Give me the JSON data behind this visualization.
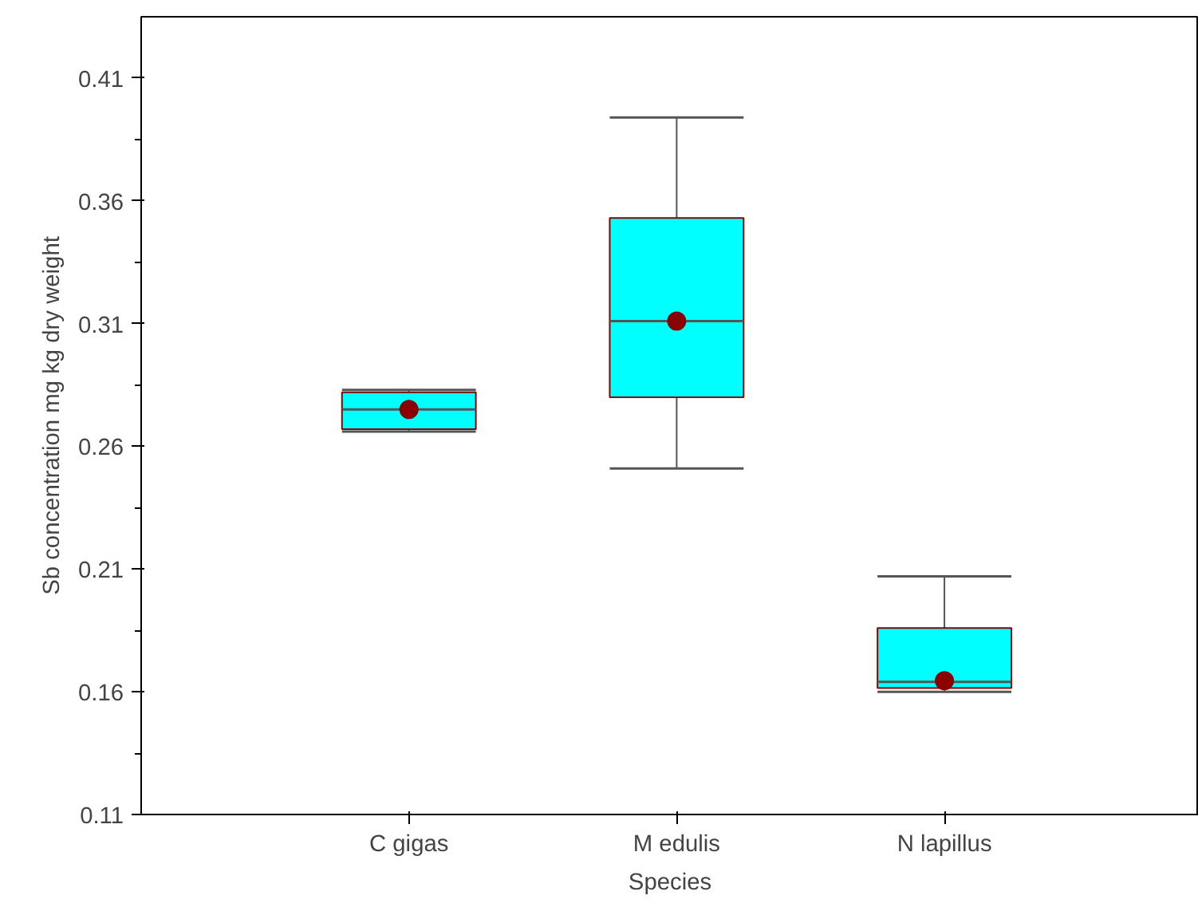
{
  "chart_data": {
    "type": "box",
    "xlabel": "Species",
    "ylabel": "Sb concentration mg kg dry weight",
    "categories": [
      "C gigas",
      "M edulis",
      "N lapillus"
    ],
    "boxes": [
      {
        "low": 0.266,
        "q1": 0.267,
        "median": 0.275,
        "q3": 0.282,
        "high": 0.283,
        "mean": 0.275
      },
      {
        "low": 0.251,
        "q1": 0.28,
        "median": 0.311,
        "q3": 0.353,
        "high": 0.394,
        "mean": 0.311
      },
      {
        "low": 0.16,
        "q1": 0.1615,
        "median": 0.164,
        "q3": 0.186,
        "high": 0.207,
        "mean": 0.1645
      }
    ],
    "color": "#00ffff",
    "ylim": [
      0.11,
      0.435
    ],
    "yticks": [
      0.11,
      0.16,
      0.21,
      0.26,
      0.31,
      0.36,
      0.41
    ],
    "grid": false
  }
}
